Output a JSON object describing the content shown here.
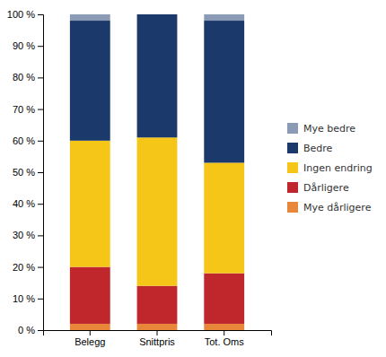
{
  "chart_data": {
    "type": "bar",
    "stacked": true,
    "categories": [
      "Belegg",
      "Snittpris",
      "Tot. Oms"
    ],
    "series": [
      {
        "name": "Mye dårligere",
        "color": "#E8873A",
        "values": [
          2,
          2,
          2
        ]
      },
      {
        "name": "Dårligere",
        "color": "#C0272D",
        "values": [
          18,
          12,
          16
        ]
      },
      {
        "name": "Ingen endring",
        "color": "#F5C518",
        "values": [
          40,
          47,
          35
        ]
      },
      {
        "name": "Bedre",
        "color": "#1B3A6B",
        "values": [
          38,
          39,
          45
        ]
      },
      {
        "name": "Mye bedre",
        "color": "#8C9BB5",
        "values": [
          2,
          0,
          2
        ]
      }
    ],
    "ylim": [
      0,
      100
    ],
    "yticks": [
      {
        "value": 0,
        "label": "0 %"
      },
      {
        "value": 10,
        "label": "10 %"
      },
      {
        "value": 20,
        "label": "20 %"
      },
      {
        "value": 30,
        "label": "30 %"
      },
      {
        "value": 40,
        "label": "40 %"
      },
      {
        "value": 50,
        "label": "50 %"
      },
      {
        "value": 60,
        "label": "60 %"
      },
      {
        "value": 70,
        "label": "70 %"
      },
      {
        "value": 80,
        "label": "80 %"
      },
      {
        "value": 90,
        "label": "90 %"
      },
      {
        "value": 100,
        "label": "100 %"
      }
    ],
    "grid": false,
    "legend": "right"
  }
}
